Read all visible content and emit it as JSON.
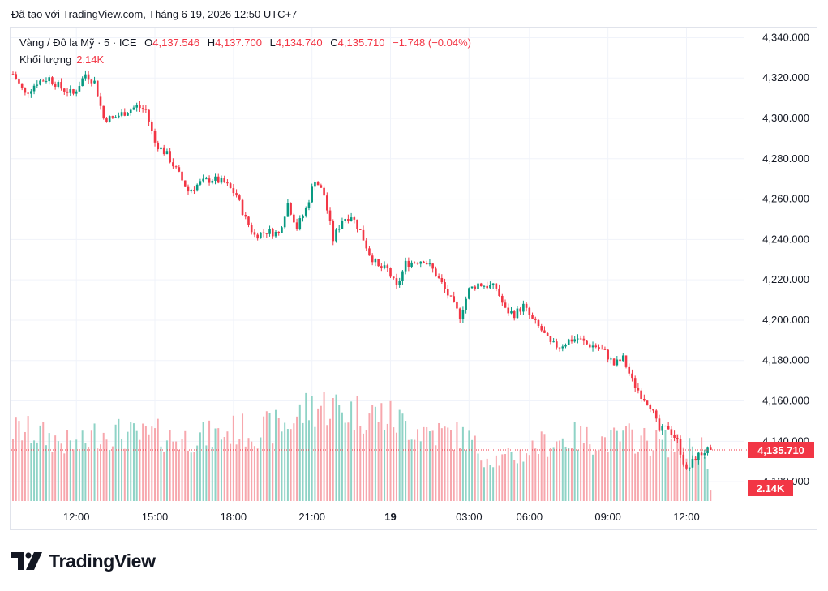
{
  "header": {
    "created_text": "Đã tạo với TradingView.com, Tháng 6 19, 2026 12:50 UTC+7"
  },
  "legend": {
    "symbol": "Vàng / Đô la Mỹ · 5 · ICE",
    "open_label": "O",
    "open": "4,137.546",
    "high_label": "H",
    "high": "4,137.700",
    "low_label": "L",
    "low": "4,134.740",
    "close_label": "C",
    "close": "4,135.710",
    "change": "−1.748 (−0.04%)",
    "volume_label": "Khối lượng",
    "volume": "2.14K"
  },
  "colors": {
    "up": "#089981",
    "down": "#f23645",
    "up_vol": "#8fd3c6",
    "down_vol": "#f7a7ad",
    "grid": "#f0f3fa",
    "last_price_line": "#f23645"
  },
  "chart_data": {
    "type": "candlestick",
    "y_axis": {
      "min": 4110,
      "max": 4345,
      "ticks": [
        "4,120.000",
        "4,140.000",
        "4,160.000",
        "4,180.000",
        "4,200.000",
        "4,220.000",
        "4,240.000",
        "4,260.000",
        "4,280.000",
        "4,300.000",
        "4,320.000",
        "4,340.000"
      ]
    },
    "x_axis": {
      "tick_labels": [
        "12:00",
        "15:00",
        "18:00",
        "21:00",
        "19",
        "03:00",
        "06:00",
        "09:00",
        "12:00"
      ],
      "tick_bar_index": [
        21,
        47,
        73,
        99,
        125,
        151,
        171,
        197,
        223
      ]
    },
    "last_price": 4135.71,
    "last_price_label": "4,135.710",
    "last_volume_label": "2.14K",
    "close_path_points": [
      [
        0,
        4322
      ],
      [
        4,
        4312
      ],
      [
        8,
        4318
      ],
      [
        12,
        4320
      ],
      [
        16,
        4315
      ],
      [
        20,
        4312
      ],
      [
        24,
        4322
      ],
      [
        27,
        4318
      ],
      [
        30,
        4300
      ],
      [
        33,
        4300
      ],
      [
        37,
        4303
      ],
      [
        41,
        4306
      ],
      [
        44,
        4304
      ],
      [
        47,
        4288
      ],
      [
        51,
        4282
      ],
      [
        55,
        4272
      ],
      [
        58,
        4264
      ],
      [
        62,
        4268
      ],
      [
        66,
        4270
      ],
      [
        70,
        4268
      ],
      [
        74,
        4262
      ],
      [
        77,
        4250
      ],
      [
        80,
        4242
      ],
      [
        84,
        4244
      ],
      [
        88,
        4243
      ],
      [
        91,
        4258
      ],
      [
        94,
        4246
      ],
      [
        97,
        4255
      ],
      [
        100,
        4270
      ],
      [
        103,
        4262
      ],
      [
        106,
        4240
      ],
      [
        109,
        4250
      ],
      [
        112,
        4252
      ],
      [
        115,
        4244
      ],
      [
        118,
        4233
      ],
      [
        121,
        4226
      ],
      [
        124,
        4225
      ],
      [
        127,
        4216
      ],
      [
        130,
        4228
      ],
      [
        133,
        4229
      ],
      [
        136,
        4230
      ],
      [
        139,
        4225
      ],
      [
        142,
        4218
      ],
      [
        145,
        4210
      ],
      [
        148,
        4202
      ],
      [
        151,
        4215
      ],
      [
        154,
        4218
      ],
      [
        157,
        4217
      ],
      [
        160,
        4216
      ],
      [
        163,
        4205
      ],
      [
        166,
        4203
      ],
      [
        169,
        4207
      ],
      [
        172,
        4200
      ],
      [
        175,
        4195
      ],
      [
        178,
        4188
      ],
      [
        181,
        4187
      ],
      [
        184,
        4190
      ],
      [
        187,
        4191
      ],
      [
        190,
        4188
      ],
      [
        193,
        4187
      ],
      [
        196,
        4184
      ],
      [
        199,
        4178
      ],
      [
        202,
        4181
      ],
      [
        205,
        4170
      ],
      [
        208,
        4163
      ],
      [
        211,
        4158
      ],
      [
        214,
        4145
      ],
      [
        217,
        4147
      ],
      [
        220,
        4140
      ],
      [
        223,
        4125
      ],
      [
        226,
        4132
      ],
      [
        229,
        4135
      ],
      [
        231,
        4135.71
      ]
    ],
    "volume_scale_max": 160,
    "volume_path_points": [
      [
        0,
        95
      ],
      [
        8,
        90
      ],
      [
        15,
        80
      ],
      [
        22,
        72
      ],
      [
        28,
        92
      ],
      [
        35,
        90
      ],
      [
        42,
        85
      ],
      [
        48,
        88
      ],
      [
        55,
        82
      ],
      [
        62,
        86
      ],
      [
        68,
        88
      ],
      [
        74,
        95
      ],
      [
        80,
        92
      ],
      [
        86,
        98
      ],
      [
        92,
        105
      ],
      [
        98,
        125
      ],
      [
        104,
        128
      ],
      [
        110,
        120
      ],
      [
        116,
        118
      ],
      [
        122,
        115
      ],
      [
        128,
        105
      ],
      [
        135,
        95
      ],
      [
        142,
        90
      ],
      [
        150,
        85
      ],
      [
        156,
        60
      ],
      [
        162,
        55
      ],
      [
        168,
        62
      ],
      [
        174,
        75
      ],
      [
        180,
        80
      ],
      [
        186,
        85
      ],
      [
        192,
        82
      ],
      [
        198,
        80
      ],
      [
        204,
        85
      ],
      [
        210,
        80
      ],
      [
        216,
        78
      ],
      [
        222,
        70
      ],
      [
        228,
        78
      ],
      [
        231,
        14
      ]
    ]
  }
}
